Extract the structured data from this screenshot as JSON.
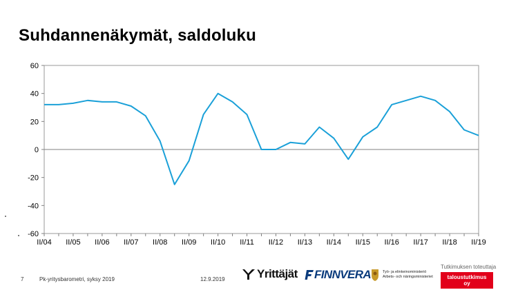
{
  "title": "Suhdannenäkymät, saldoluku",
  "footer": {
    "page_number": "7",
    "source": "Pk-yritysbarometri, syksy 2019",
    "date": "12.9.2019"
  },
  "logos": {
    "yrittajat": "Yrittäjät",
    "finnvera": "FINNVERA",
    "tem_line1": "Työ- ja elinkeinoministeriö",
    "tem_line2": "Arbets- och näringsministeriet",
    "tt_caption": "Tutkimuksen toteuttaja",
    "tt_name": "taloustutkimus oy"
  },
  "colors": {
    "line": "#1aa0d8",
    "red": "#e2001a",
    "navy": "#0a3b7c"
  },
  "chart_data": {
    "type": "line",
    "title": "Suhdannenäkymät, saldoluku",
    "xlabel": "",
    "ylabel": "",
    "ylim": [
      -60,
      60
    ],
    "yticks": [
      60,
      40,
      20,
      0,
      -20,
      -40,
      -60
    ],
    "xtick_labels": [
      "II/04",
      "II/05",
      "II/06",
      "II/07",
      "II/08",
      "II/09",
      "II/10",
      "II/11",
      "II/12",
      "II/13",
      "II/14",
      "II/15",
      "II/16",
      "II/17",
      "II/18",
      "II/19"
    ],
    "grid": false,
    "legend": "none",
    "series": [
      {
        "x": [
          "II/04",
          "I/05",
          "II/05",
          "I/06",
          "II/06",
          "I/07",
          "II/07",
          "I/08",
          "II/08",
          "I/09",
          "II/09",
          "I/10",
          "II/10",
          "I/11",
          "II/11",
          "I/12",
          "II/12",
          "I/13",
          "II/13",
          "I/14",
          "II/14",
          "I/15",
          "II/15",
          "I/16",
          "II/16",
          "I/17",
          "II/17",
          "I/18",
          "II/18",
          "I/19",
          "II/19"
        ],
        "values": [
          32,
          32,
          33,
          35,
          34,
          34,
          31,
          24,
          6,
          -25,
          -8,
          25,
          40,
          34,
          25,
          0,
          0,
          5,
          4,
          16,
          8,
          -7,
          9,
          16,
          32,
          35,
          38,
          35,
          27,
          14,
          10
        ]
      }
    ]
  }
}
